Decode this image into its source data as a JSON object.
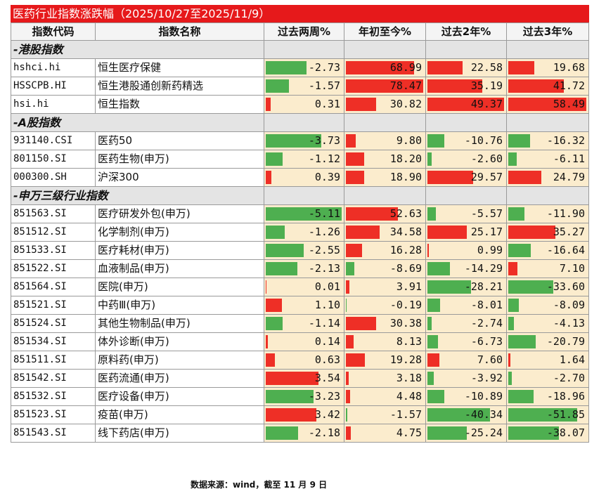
{
  "title": "医药行业指数涨跌幅（2025/10/27至2025/11/9）",
  "headers": [
    "指数代码",
    "指数名称",
    "过去两周%",
    "年初至今%",
    "过去2年%",
    "过去3年%"
  ],
  "colors": {
    "title_bg": "#e6191b",
    "positive": "#ee2f26",
    "negative": "#4eaf50",
    "value_bg": "#fbeccd"
  },
  "sections": [
    {
      "label": "-港股指数",
      "rows": [
        {
          "code": "hshci.hi",
          "name": "恒生医疗保健",
          "values": [
            -2.73,
            68.99,
            22.58,
            19.68
          ]
        },
        {
          "code": "HSSCPB.HI",
          "name": "恒生港股通创新药精选",
          "values": [
            -1.57,
            78.47,
            35.19,
            41.72
          ]
        },
        {
          "code": "hsi.hi",
          "name": "恒生指数",
          "values": [
            0.31,
            30.82,
            49.37,
            58.49
          ]
        }
      ]
    },
    {
      "label": "-A股指数",
      "rows": [
        {
          "code": "931140.CSI",
          "name": "医药50",
          "values": [
            -3.73,
            9.8,
            -10.76,
            -16.32
          ]
        },
        {
          "code": "801150.SI",
          "name": "医药生物(申万)",
          "values": [
            -1.12,
            18.2,
            -2.6,
            -6.11
          ]
        },
        {
          "code": "000300.SH",
          "name": "沪深300",
          "values": [
            0.39,
            18.9,
            29.57,
            24.79
          ]
        }
      ]
    },
    {
      "label": "-申万三级行业指数",
      "rows": [
        {
          "code": "851563.SI",
          "name": "医疗研发外包(申万)",
          "values": [
            -5.11,
            52.63,
            -5.57,
            -11.9
          ]
        },
        {
          "code": "851512.SI",
          "name": "化学制剂(申万)",
          "values": [
            -1.26,
            34.58,
            25.17,
            35.27
          ]
        },
        {
          "code": "851533.SI",
          "name": "医疗耗材(申万)",
          "values": [
            -2.55,
            16.28,
            0.99,
            -16.64
          ]
        },
        {
          "code": "851522.SI",
          "name": "血液制品(申万)",
          "values": [
            -2.13,
            -8.69,
            -14.29,
            7.1
          ]
        },
        {
          "code": "851564.SI",
          "name": "医院(申万)",
          "values": [
            0.01,
            3.91,
            -28.21,
            -33.6
          ]
        },
        {
          "code": "851521.SI",
          "name": "中药Ⅲ(申万)",
          "values": [
            1.1,
            -0.19,
            -8.01,
            -8.09
          ]
        },
        {
          "code": "851524.SI",
          "name": "其他生物制品(申万)",
          "values": [
            -1.14,
            30.38,
            -2.74,
            -4.13
          ]
        },
        {
          "code": "851534.SI",
          "name": "体外诊断(申万)",
          "values": [
            0.14,
            8.13,
            -6.73,
            -20.79
          ]
        },
        {
          "code": "851511.SI",
          "name": "原料药(申万)",
          "values": [
            0.63,
            19.28,
            7.6,
            1.64
          ]
        },
        {
          "code": "851542.SI",
          "name": "医药流通(申万)",
          "values": [
            3.54,
            3.18,
            -3.92,
            -2.7
          ]
        },
        {
          "code": "851532.SI",
          "name": "医疗设备(申万)",
          "values": [
            -3.23,
            4.48,
            -10.89,
            -18.96
          ]
        },
        {
          "code": "851523.SI",
          "name": "疫苗(申万)",
          "values": [
            3.42,
            -1.57,
            -40.34,
            -51.85
          ]
        },
        {
          "code": "851543.SI",
          "name": "线下药店(申万)",
          "values": [
            -2.18,
            4.75,
            -25.24,
            -38.07
          ]
        }
      ]
    }
  ],
  "footnote": "数据来源：wind，截至 11 月 9 日"
}
